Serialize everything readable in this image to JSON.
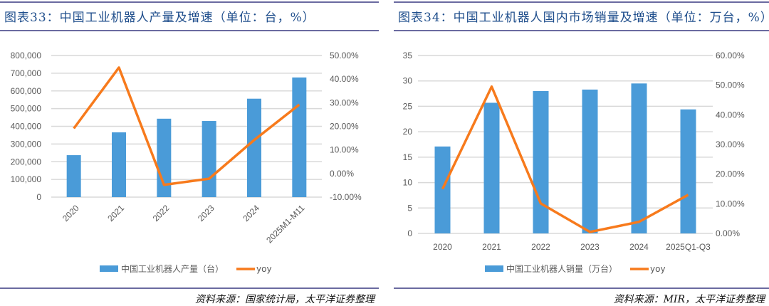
{
  "chart_data": [
    {
      "type": "bar+line",
      "title": "图表33：中国工业机器人产量及增速（单位：台，%）",
      "categories": [
        "2020",
        "2021",
        "2022",
        "2023",
        "2024",
        "2025M1-M11"
      ],
      "series": [
        {
          "name": "中国工业机器人产量（台）",
          "type": "bar",
          "axis": "left",
          "color": "#4a9bd8",
          "values": [
            237000,
            366000,
            443000,
            430000,
            556000,
            676000
          ]
        },
        {
          "name": "yoy",
          "type": "line",
          "axis": "right",
          "color": "#f77a1c",
          "values": [
            19.1,
            44.9,
            -4.8,
            -2.2,
            14.2,
            29.2
          ]
        }
      ],
      "left_axis": {
        "ylim": [
          0,
          800000
        ],
        "ticks": [
          "0",
          "100,000",
          "200,000",
          "300,000",
          "400,000",
          "500,000",
          "600,000",
          "700,000",
          "800,000"
        ]
      },
      "right_axis": {
        "ylim": [
          -10,
          50
        ],
        "ticks": [
          "-10.00%",
          "0.00%",
          "10.00%",
          "20.00%",
          "30.00%",
          "40.00%",
          "50.00%"
        ]
      },
      "xlabel_rotated": true,
      "legend": "bottom",
      "grid": true,
      "source": "资料来源：国家统计局，太平洋证券整理"
    },
    {
      "type": "bar+line",
      "title": "图表34：中国工业机器人国内市场销量及增速（单位：万台，%）",
      "categories": [
        "2020",
        "2021",
        "2022",
        "2023",
        "2024",
        "2025Q1-Q3"
      ],
      "series": [
        {
          "name": "中国工业机器人销量（万台）",
          "type": "bar",
          "axis": "left",
          "color": "#4a9bd8",
          "values": [
            17.1,
            25.7,
            28.0,
            28.3,
            29.5,
            24.4
          ]
        },
        {
          "name": "yoy",
          "type": "line",
          "axis": "right",
          "color": "#f77a1c",
          "values": [
            15.0,
            49.5,
            10.1,
            0.5,
            3.9,
            13.0
          ]
        }
      ],
      "left_axis": {
        "ylim": [
          0,
          35
        ],
        "ticks": [
          "0",
          "5",
          "10",
          "15",
          "20",
          "25",
          "30",
          "35"
        ]
      },
      "right_axis": {
        "ylim": [
          0,
          60
        ],
        "ticks": [
          "0.00%",
          "10.00%",
          "20.00%",
          "30.00%",
          "40.00%",
          "50.00%",
          "60.00%"
        ]
      },
      "xlabel_rotated": false,
      "legend": "bottom",
      "grid": true,
      "source": "资料来源：MIR，太平洋证券整理"
    }
  ]
}
